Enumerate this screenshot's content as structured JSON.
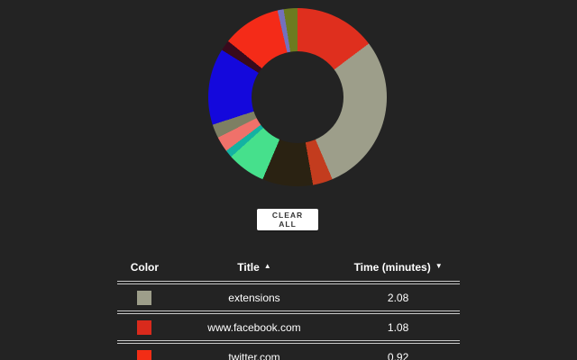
{
  "background": "#232323",
  "chart_data": {
    "type": "pie",
    "donut": true,
    "legend_position": "none",
    "title": "",
    "units": "minutes",
    "segments": [
      {
        "color": "#df2f1e",
        "start_deg": 0,
        "end_deg": 53,
        "label": "www.facebook.com",
        "minutes": 1.08
      },
      {
        "color": "#9d9e8a",
        "start_deg": 53,
        "end_deg": 157,
        "label": "extensions",
        "minutes": 2.08
      },
      {
        "color": "#c33c1e",
        "start_deg": 157,
        "end_deg": 170
      },
      {
        "color": "#2a2212",
        "start_deg": 170,
        "end_deg": 203
      },
      {
        "color": "#46e08c",
        "start_deg": 203,
        "end_deg": 228
      },
      {
        "color": "#14b2a2",
        "start_deg": 228,
        "end_deg": 233
      },
      {
        "color": "#f0716a",
        "start_deg": 233,
        "end_deg": 243
      },
      {
        "color": "#7d7f63",
        "start_deg": 243,
        "end_deg": 252
      },
      {
        "color": "#1408dc",
        "start_deg": 252,
        "end_deg": 302
      },
      {
        "color": "#380a1c",
        "start_deg": 302,
        "end_deg": 309
      },
      {
        "color": "#f42b18",
        "start_deg": 309,
        "end_deg": 347,
        "label": "twitter.com",
        "minutes": 0.92
      },
      {
        "color": "#7470bd",
        "start_deg": 347,
        "end_deg": 351
      },
      {
        "color": "#6d7b20",
        "start_deg": 351,
        "end_deg": 360
      }
    ]
  },
  "button": {
    "label": "CLEAR ALL"
  },
  "table": {
    "headers": [
      {
        "label": "Color",
        "sort": ""
      },
      {
        "label": "Title",
        "sort": "▲"
      },
      {
        "label": "Time (minutes)",
        "sort": "▼"
      }
    ],
    "rows": [
      {
        "color": "#9d9e8a",
        "title": "extensions",
        "time": "2.08"
      },
      {
        "color": "#d92a1c",
        "title": "www.facebook.com",
        "time": "1.08"
      },
      {
        "color": "#f22d15",
        "title": "twitter.com",
        "time": "0.92"
      }
    ]
  }
}
